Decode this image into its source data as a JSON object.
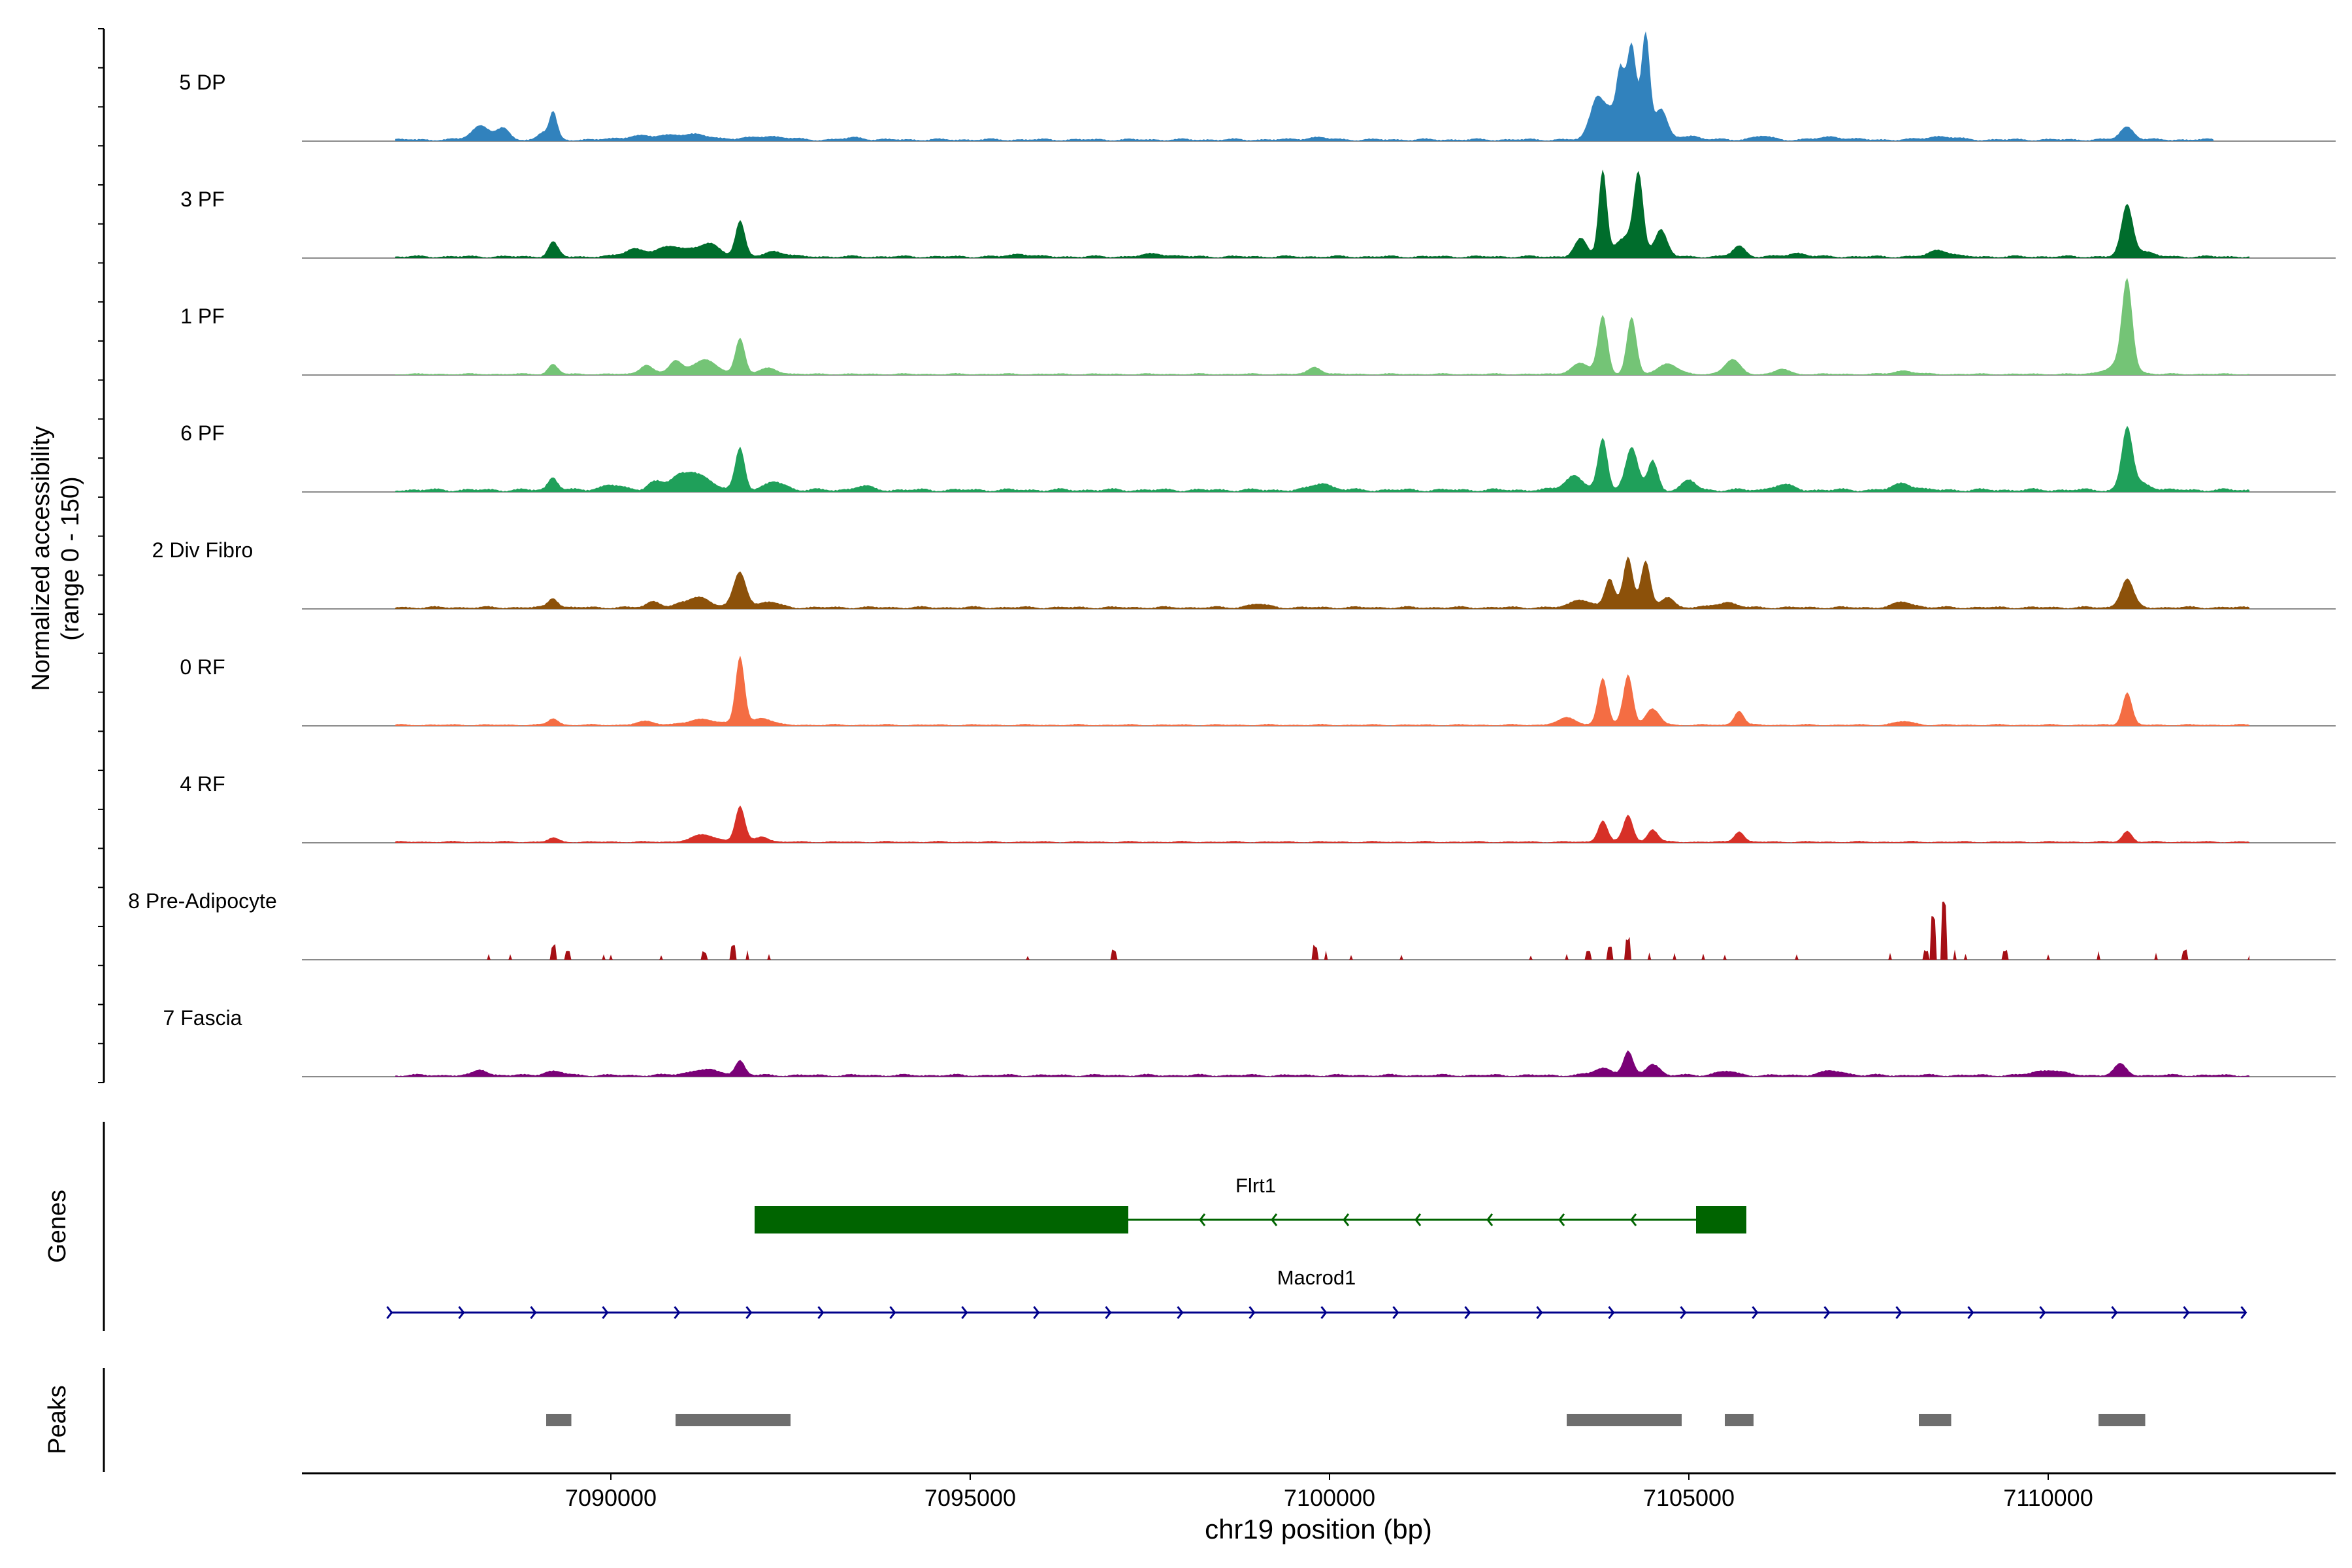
{
  "chart_data": {
    "type": "area",
    "title": "",
    "xlabel": "chr19 position (bp)",
    "xlim": [
      7085700,
      7114000
    ],
    "x_ticks": [
      7090000,
      7095000,
      7100000,
      7105000,
      7110000
    ],
    "x_tick_labels": [
      "7090000",
      "7095000",
      "7100000",
      "7105000",
      "7110000"
    ],
    "coverage_panel": {
      "ylabel_line1": "Normalized accessibility",
      "ylabel_line2": "(range 0 - 150)",
      "ylim": [
        0,
        150
      ]
    },
    "tracks": [
      {
        "name": "5 DP",
        "color": "#3182bd",
        "noise": 3,
        "noise_start": 7087000,
        "noise_end": 7112300,
        "sparse": false,
        "peaks": [
          [
            7088200,
            300,
            20
          ],
          [
            7088500,
            200,
            14
          ],
          [
            7089200,
            120,
            42
          ],
          [
            7089050,
            150,
            10
          ],
          [
            7090300,
            400,
            4
          ],
          [
            7091000,
            800,
            8
          ],
          [
            7092200,
            500,
            5
          ],
          [
            7093400,
            300,
            3
          ],
          [
            7099800,
            400,
            3
          ],
          [
            7103700,
            200,
            55
          ],
          [
            7103900,
            250,
            40
          ],
          [
            7104050,
            120,
            90
          ],
          [
            7104200,
            150,
            135
          ],
          [
            7104400,
            130,
            150
          ],
          [
            7104600,
            200,
            45
          ],
          [
            7105000,
            300,
            6
          ],
          [
            7106000,
            300,
            5
          ],
          [
            7107000,
            400,
            4
          ],
          [
            7108500,
            400,
            5
          ],
          [
            7111100,
            220,
            18
          ]
        ]
      },
      {
        "name": "3 PF",
        "color": "#006d2c",
        "noise": 3,
        "noise_start": 7087000,
        "noise_end": 7112800,
        "sparse": false,
        "peaks": [
          [
            7089200,
            150,
            22
          ],
          [
            7090300,
            300,
            10
          ],
          [
            7090900,
            600,
            15
          ],
          [
            7091400,
            300,
            16
          ],
          [
            7091800,
            150,
            50
          ],
          [
            7092300,
            300,
            8
          ],
          [
            7095700,
            300,
            4
          ],
          [
            7097600,
            400,
            4
          ],
          [
            7103500,
            200,
            25
          ],
          [
            7103800,
            130,
            120
          ],
          [
            7104100,
            250,
            30
          ],
          [
            7104300,
            150,
            110
          ],
          [
            7104600,
            200,
            40
          ],
          [
            7105700,
            200,
            15
          ],
          [
            7106500,
            300,
            5
          ],
          [
            7108500,
            300,
            10
          ],
          [
            7111100,
            180,
            70
          ],
          [
            7111300,
            300,
            8
          ]
        ]
      },
      {
        "name": "1 PF",
        "color": "#74c476",
        "noise": 2,
        "noise_start": 7087000,
        "noise_end": 7112800,
        "sparse": false,
        "peaks": [
          [
            7089200,
            150,
            15
          ],
          [
            7090500,
            200,
            14
          ],
          [
            7090900,
            200,
            18
          ],
          [
            7091300,
            400,
            20
          ],
          [
            7091800,
            150,
            50
          ],
          [
            7092200,
            300,
            8
          ],
          [
            7099800,
            200,
            10
          ],
          [
            7103500,
            300,
            15
          ],
          [
            7103800,
            150,
            80
          ],
          [
            7104200,
            150,
            80
          ],
          [
            7104700,
            300,
            15
          ],
          [
            7105600,
            250,
            20
          ],
          [
            7106300,
            200,
            8
          ],
          [
            7108000,
            300,
            5
          ],
          [
            7111100,
            160,
            120
          ],
          [
            7111000,
            400,
            15
          ]
        ]
      },
      {
        "name": "6 PF",
        "color": "#1fa05a",
        "noise": 4,
        "noise_start": 7087000,
        "noise_end": 7112800,
        "sparse": false,
        "peaks": [
          [
            7089200,
            150,
            20
          ],
          [
            7090000,
            300,
            8
          ],
          [
            7090600,
            200,
            12
          ],
          [
            7091100,
            500,
            28
          ],
          [
            7091800,
            150,
            60
          ],
          [
            7092300,
            300,
            12
          ],
          [
            7093500,
            300,
            5
          ],
          [
            7099900,
            300,
            10
          ],
          [
            7103400,
            300,
            20
          ],
          [
            7103800,
            150,
            70
          ],
          [
            7104200,
            200,
            60
          ],
          [
            7104500,
            150,
            45
          ],
          [
            7105000,
            200,
            15
          ],
          [
            7106300,
            300,
            8
          ],
          [
            7108000,
            300,
            10
          ],
          [
            7111100,
            170,
            85
          ],
          [
            7111300,
            300,
            10
          ]
        ]
      },
      {
        "name": "2 Div Fibro",
        "color": "#8c510a",
        "noise": 3,
        "noise_start": 7087000,
        "noise_end": 7112800,
        "sparse": false,
        "peaks": [
          [
            7089200,
            150,
            15
          ],
          [
            7090600,
            200,
            10
          ],
          [
            7091200,
            400,
            15
          ],
          [
            7091800,
            200,
            50
          ],
          [
            7092200,
            300,
            8
          ],
          [
            7099000,
            300,
            5
          ],
          [
            7103500,
            300,
            12
          ],
          [
            7103900,
            150,
            40
          ],
          [
            7104150,
            150,
            75
          ],
          [
            7104400,
            150,
            65
          ],
          [
            7104700,
            200,
            15
          ],
          [
            7105500,
            300,
            8
          ],
          [
            7108000,
            300,
            8
          ],
          [
            7111100,
            200,
            40
          ]
        ]
      },
      {
        "name": "0 RF",
        "color": "#f46d43",
        "noise": 2,
        "noise_start": 7087000,
        "noise_end": 7112800,
        "sparse": false,
        "peaks": [
          [
            7089200,
            150,
            10
          ],
          [
            7090500,
            300,
            5
          ],
          [
            7091300,
            500,
            8
          ],
          [
            7091800,
            140,
            95
          ],
          [
            7092100,
            300,
            10
          ],
          [
            7103300,
            300,
            10
          ],
          [
            7103800,
            150,
            65
          ],
          [
            7104150,
            150,
            75
          ],
          [
            7104500,
            200,
            25
          ],
          [
            7105700,
            150,
            20
          ],
          [
            7108000,
            300,
            5
          ],
          [
            7111100,
            150,
            45
          ]
        ]
      },
      {
        "name": "4 RF",
        "color": "#d73027",
        "noise": 2,
        "noise_start": 7087000,
        "noise_end": 7112800,
        "sparse": false,
        "peaks": [
          [
            7089200,
            150,
            6
          ],
          [
            7091300,
            400,
            10
          ],
          [
            7091800,
            150,
            50
          ],
          [
            7092100,
            200,
            8
          ],
          [
            7103800,
            150,
            30
          ],
          [
            7104150,
            150,
            40
          ],
          [
            7104500,
            150,
            20
          ],
          [
            7105700,
            150,
            15
          ],
          [
            7111100,
            150,
            15
          ]
        ]
      },
      {
        "name": "8 Pre-Adipocyte",
        "color": "#a50f15",
        "noise": 0,
        "noise_start": 7087000,
        "noise_end": 7112800,
        "sparse": true,
        "peaks": [
          [
            7088300,
            40,
            8
          ],
          [
            7088600,
            40,
            8
          ],
          [
            7089200,
            60,
            22
          ],
          [
            7089400,
            50,
            12
          ],
          [
            7089900,
            40,
            8
          ],
          [
            7090000,
            40,
            7
          ],
          [
            7090700,
            40,
            8
          ],
          [
            7091300,
            50,
            12
          ],
          [
            7091700,
            50,
            20
          ],
          [
            7091900,
            40,
            14
          ],
          [
            7092200,
            40,
            8
          ],
          [
            7095800,
            40,
            7
          ],
          [
            7097000,
            50,
            14
          ],
          [
            7099800,
            60,
            22
          ],
          [
            7099950,
            40,
            15
          ],
          [
            7100300,
            40,
            8
          ],
          [
            7101000,
            40,
            7
          ],
          [
            7102800,
            40,
            6
          ],
          [
            7103300,
            40,
            8
          ],
          [
            7103600,
            50,
            12
          ],
          [
            7103900,
            50,
            18
          ],
          [
            7104150,
            60,
            35
          ],
          [
            7104450,
            40,
            14
          ],
          [
            7104800,
            40,
            10
          ],
          [
            7105200,
            40,
            10
          ],
          [
            7105500,
            40,
            8
          ],
          [
            7106500,
            40,
            8
          ],
          [
            7107800,
            40,
            10
          ],
          [
            7108300,
            50,
            15
          ],
          [
            7108400,
            60,
            60
          ],
          [
            7108550,
            60,
            80
          ],
          [
            7108700,
            40,
            14
          ],
          [
            7108850,
            40,
            8
          ],
          [
            7109400,
            50,
            15
          ],
          [
            7110000,
            40,
            10
          ],
          [
            7110700,
            40,
            12
          ],
          [
            7111500,
            40,
            10
          ],
          [
            7111900,
            50,
            14
          ],
          [
            7112800,
            30,
            8
          ]
        ]
      },
      {
        "name": "7 Fascia",
        "color": "#7a0177",
        "noise": 3,
        "noise_start": 7087000,
        "noise_end": 7112800,
        "sparse": false,
        "peaks": [
          [
            7088200,
            200,
            8
          ],
          [
            7089200,
            300,
            6
          ],
          [
            7091300,
            500,
            8
          ],
          [
            7091800,
            150,
            20
          ],
          [
            7103800,
            300,
            10
          ],
          [
            7104150,
            150,
            35
          ],
          [
            7104500,
            200,
            18
          ],
          [
            7105500,
            300,
            6
          ],
          [
            7107000,
            400,
            6
          ],
          [
            7110000,
            400,
            8
          ],
          [
            7111000,
            200,
            15
          ]
        ]
      }
    ],
    "genes_panel": {
      "ylabel": "Genes",
      "genes": [
        {
          "name": "Flrt1",
          "strand": "-",
          "color": "#006400",
          "span": [
            7092000,
            7105800
          ],
          "exons": [
            [
              7092000,
              7097200
            ],
            [
              7105100,
              7105800
            ]
          ],
          "arrow_positions": [
            7098200,
            7099200,
            7100200,
            7101200,
            7102200,
            7103200,
            7104200
          ]
        },
        {
          "name": "Macrod1",
          "strand": "+",
          "color": "#00008b",
          "span": [
            7086950,
            7112750
          ],
          "exons": [],
          "arrow_positions": [
            7086950,
            7087950,
            7088950,
            7089950,
            7090950,
            7091950,
            7092950,
            7093950,
            7094950,
            7095950,
            7096950,
            7097950,
            7098950,
            7099950,
            7100950,
            7101950,
            7102950,
            7103950,
            7104950,
            7105950,
            7106950,
            7107950,
            7108950,
            7109950,
            7110950,
            7111950,
            7112750
          ]
        }
      ]
    },
    "peaks_panel": {
      "ylabel": "Peaks",
      "color": "#6e6e6e",
      "regions": [
        [
          7089100,
          7089450
        ],
        [
          7090900,
          7092500
        ],
        [
          7103300,
          7104900
        ],
        [
          7105500,
          7105900
        ],
        [
          7108200,
          7108650
        ],
        [
          7110700,
          7111350
        ]
      ]
    }
  }
}
